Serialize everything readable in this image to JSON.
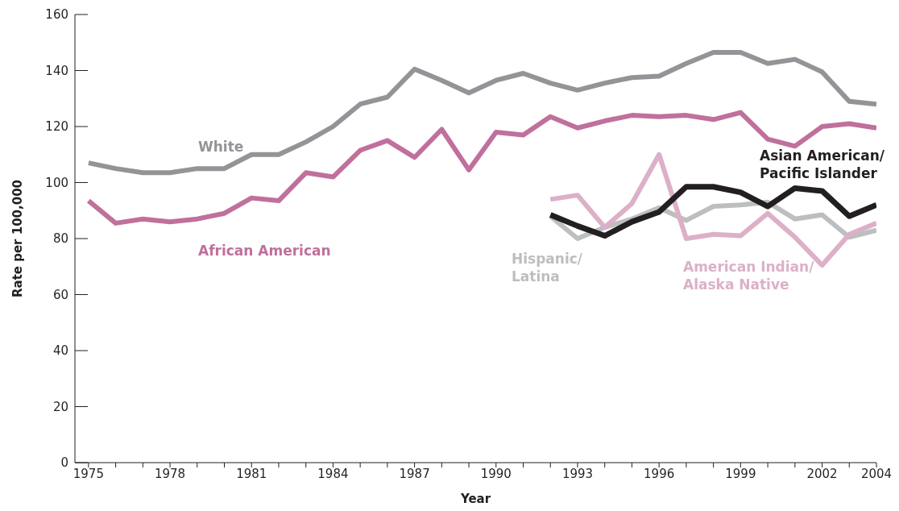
{
  "chart_data": {
    "type": "line",
    "xlabel": "Year",
    "ylabel": "Rate per 100,000",
    "xlim": [
      1974.5,
      2004
    ],
    "ylim": [
      0,
      160
    ],
    "xticks": [
      1975,
      {
        "value": 1976,
        "label": null
      },
      {
        "value": 1977,
        "label": null
      },
      1978,
      {
        "value": 1979,
        "label": null
      },
      {
        "value": 1980,
        "label": null
      },
      1981,
      {
        "value": 1982,
        "label": null
      },
      {
        "value": 1983,
        "label": null
      },
      1984,
      {
        "value": 1985,
        "label": null
      },
      {
        "value": 1986,
        "label": null
      },
      1987,
      {
        "value": 1988,
        "label": null
      },
      {
        "value": 1989,
        "label": null
      },
      1990,
      {
        "value": 1991,
        "label": null
      },
      {
        "value": 1992,
        "label": null
      },
      1993,
      {
        "value": 1994,
        "label": null
      },
      {
        "value": 1995,
        "label": null
      },
      1996,
      {
        "value": 1997,
        "label": null
      },
      {
        "value": 1998,
        "label": null
      },
      1999,
      {
        "value": 2000,
        "label": null
      },
      {
        "value": 2001,
        "label": null
      },
      2002,
      {
        "value": 2003,
        "label": null
      },
      2004
    ],
    "yticks": [
      0,
      20,
      40,
      60,
      80,
      100,
      120,
      140,
      160
    ],
    "grid": false,
    "legend": false,
    "marker": "none",
    "line_style": "solid",
    "series": [
      {
        "name": "White",
        "color": "#929497",
        "x": [
          1975,
          1976,
          1977,
          1978,
          1979,
          1980,
          1981,
          1982,
          1983,
          1984,
          1985,
          1986,
          1987,
          1988,
          1989,
          1990,
          1991,
          1992,
          1993,
          1994,
          1995,
          1996,
          1997,
          1998,
          1999,
          2000,
          2001,
          2002,
          2003,
          2004
        ],
        "values": [
          107,
          105,
          103.5,
          103.5,
          105,
          105,
          110,
          110,
          114.5,
          120,
          128,
          130.5,
          140.5,
          136.5,
          132,
          136.5,
          139,
          135.5,
          133,
          135.5,
          137.5,
          138,
          142.5,
          146.5,
          146.5,
          142.5,
          144,
          139.5,
          129,
          128
        ]
      },
      {
        "name": "African American",
        "color": "#c0709c",
        "x": [
          1975,
          1976,
          1977,
          1978,
          1979,
          1980,
          1981,
          1982,
          1983,
          1984,
          1985,
          1986,
          1987,
          1988,
          1989,
          1990,
          1991,
          1992,
          1993,
          1994,
          1995,
          1996,
          1997,
          1998,
          1999,
          2000,
          2001,
          2002,
          2003,
          2004
        ],
        "values": [
          93.5,
          85.5,
          87,
          86,
          87,
          89,
          94.5,
          93.5,
          103.5,
          102,
          111.5,
          115,
          109,
          119,
          104.5,
          118,
          117,
          123.5,
          119.5,
          122,
          124,
          123.5,
          124,
          122.5,
          125,
          115.5,
          113,
          120,
          121,
          119.5
        ]
      },
      {
        "name": "Hispanic/\nLatina",
        "color": "#bcbec0",
        "x": [
          1992,
          1993,
          1994,
          1995,
          1996,
          1997,
          1998,
          1999,
          2000,
          2001,
          2002,
          2003,
          2004
        ],
        "values": [
          88,
          80,
          84,
          87,
          91,
          86.5,
          91.5,
          92,
          93,
          87,
          88.5,
          80.5,
          83
        ]
      },
      {
        "name": "American Indian/\nAlaska Native",
        "color": "#dcb0c8",
        "x": [
          1992,
          1993,
          1994,
          1995,
          1996,
          1997,
          1998,
          1999,
          2000,
          2001,
          2002,
          2003,
          2004
        ],
        "values": [
          94,
          95.5,
          84,
          92.5,
          110,
          80,
          81.5,
          81,
          89,
          80.5,
          70.5,
          81.5,
          85.5
        ]
      },
      {
        "name": "Asian American/\nPacific Islander",
        "color": "#231f20",
        "x": [
          1992,
          1993,
          1994,
          1995,
          1996,
          1997,
          1998,
          1999,
          2000,
          2001,
          2002,
          2003,
          2004
        ],
        "values": [
          88.5,
          84.5,
          81,
          86,
          89.5,
          98.5,
          98.5,
          96.5,
          91.5,
          98,
          97,
          88,
          92
        ]
      }
    ]
  }
}
